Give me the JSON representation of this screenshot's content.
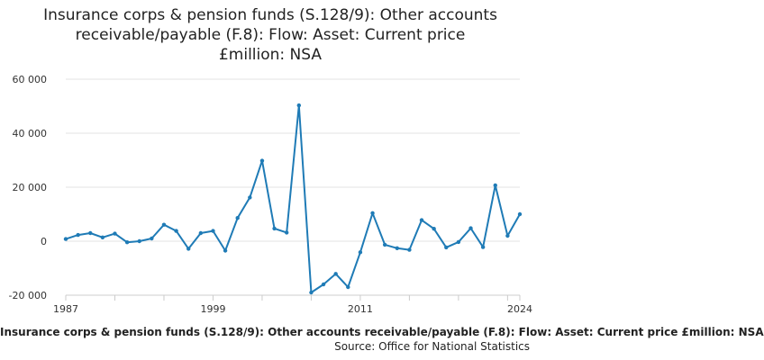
{
  "chart_data": {
    "type": "line",
    "title_lines": [
      "Insurance corps & pension funds (S.128/9): Other accounts",
      "receivable/payable (F.8): Flow: Asset: Current price",
      "£million: NSA"
    ],
    "x_tick_labels": [
      "1987",
      "1999",
      "2011",
      "2024"
    ],
    "x_ticks": [
      1987,
      1999,
      2011,
      2024
    ],
    "y_tick_labels": [
      "60 000",
      "40 000",
      "20 000",
      "0",
      "-20 000"
    ],
    "y_ticks": [
      60000,
      40000,
      20000,
      0,
      -20000
    ],
    "ylim": [
      -20000,
      60000
    ],
    "xlim": [
      1987,
      2024
    ],
    "grid": "horizontal",
    "color": "#1f7bb6",
    "x": [
      1987,
      1988,
      1989,
      1990,
      1991,
      1992,
      1993,
      1994,
      1995,
      1996,
      1997,
      1998,
      1999,
      2000,
      2001,
      2002,
      2003,
      2004,
      2005,
      2006,
      2007,
      2008,
      2009,
      2010,
      2011,
      2012,
      2013,
      2014,
      2015,
      2016,
      2017,
      2018,
      2019,
      2020,
      2021,
      2022,
      2023,
      2024
    ],
    "values": [
      800,
      2300,
      3000,
      1400,
      2800,
      -400,
      0,
      1000,
      6100,
      3800,
      -2800,
      3000,
      3800,
      -3500,
      8600,
      16200,
      29800,
      4700,
      3200,
      50300,
      -19000,
      -16000,
      -12100,
      -17000,
      -4100,
      10400,
      -1300,
      -2600,
      -3200,
      7800,
      4600,
      -2300,
      -300,
      4800,
      -2200,
      20700,
      2000,
      10000
    ]
  },
  "footer": {
    "caption": "Insurance corps & pension funds (S.128/9): Other accounts receivable/payable (F.8): Flow: Asset: Current price £million: NSA",
    "source": "Source: Office for National Statistics"
  }
}
